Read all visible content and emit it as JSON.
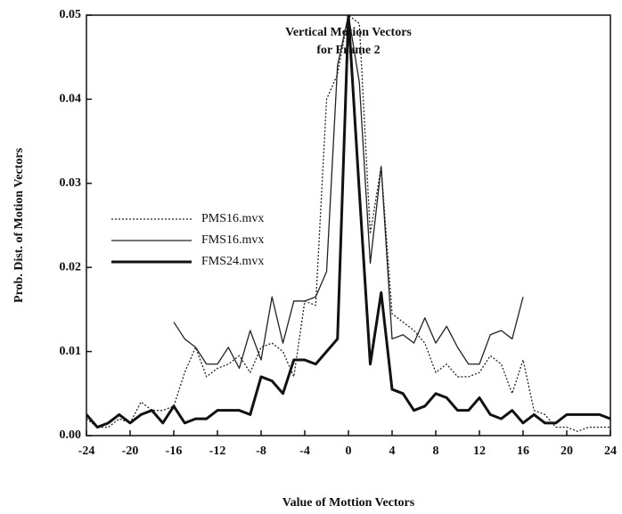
{
  "chart_data": {
    "type": "line",
    "title": [
      "Vertical Motion Vectors",
      "for Frame 2"
    ],
    "x_label": "Value of Mottion Vectors",
    "y_label": "Prob. Dist. of Motion Vectors",
    "xlim": [
      -24,
      24
    ],
    "xticks": [
      -24,
      -20,
      -16,
      -12,
      -8,
      -4,
      0,
      4,
      8,
      12,
      16,
      20,
      24
    ],
    "ylim": [
      0,
      0.05
    ],
    "yticks": [
      {
        "value": 0,
        "label": "0.00"
      },
      0.01,
      0.02,
      0.03,
      0.04,
      0.05
    ],
    "legend": "upper left",
    "series": [
      {
        "name": "PMS16.mvx",
        "color": "#222222",
        "style": "dotted",
        "width": 1.3,
        "x": [
          -24,
          -23,
          -22,
          -21,
          -20,
          -19,
          -18,
          -17,
          -16,
          -15,
          -14,
          -13,
          -12,
          -11,
          -10,
          -9,
          -8,
          -7,
          -6,
          -5,
          -4,
          -3,
          -2,
          -1,
          0,
          1,
          2,
          3,
          4,
          5,
          6,
          7,
          8,
          9,
          10,
          11,
          12,
          13,
          14,
          15,
          16,
          17,
          18,
          19,
          20,
          21,
          22,
          23,
          24
        ],
        "values": [
          0.002,
          0.001,
          0.001,
          0.002,
          0.0015,
          0.004,
          0.003,
          0.003,
          0.0035,
          0.0075,
          0.0105,
          0.007,
          0.008,
          0.0085,
          0.0095,
          0.0075,
          0.0105,
          0.011,
          0.01,
          0.007,
          0.016,
          0.0155,
          0.04,
          0.043,
          0.05,
          0.049,
          0.024,
          0.032,
          0.0145,
          0.0135,
          0.0125,
          0.011,
          0.0075,
          0.0085,
          0.007,
          0.007,
          0.0075,
          0.0095,
          0.0085,
          0.005,
          0.009,
          0.003,
          0.0025,
          0.001,
          0.001,
          0.0005,
          0.001,
          0.001,
          0.001
        ]
      },
      {
        "name": "FMS16.mvx",
        "color": "#222222",
        "style": "solid",
        "width": 1.3,
        "x": [
          -16,
          -15,
          -14,
          -13,
          -12,
          -11,
          -10,
          -9,
          -8,
          -7,
          -6,
          -5,
          -4,
          -3,
          -2,
          -1,
          0,
          1,
          2,
          3,
          4,
          5,
          6,
          7,
          8,
          9,
          10,
          11,
          12,
          13,
          14,
          15,
          16
        ],
        "values": [
          0.0135,
          0.0115,
          0.0105,
          0.0085,
          0.0085,
          0.0105,
          0.008,
          0.0125,
          0.009,
          0.0165,
          0.011,
          0.016,
          0.016,
          0.0165,
          0.0195,
          0.044,
          0.05,
          0.042,
          0.0205,
          0.032,
          0.0115,
          0.012,
          0.011,
          0.014,
          0.011,
          0.013,
          0.0105,
          0.0085,
          0.0085,
          0.012,
          0.0125,
          0.0115,
          0.0165
        ]
      },
      {
        "name": "FMS24.mvx",
        "color": "#111111",
        "style": "solid",
        "width": 3,
        "x": [
          -24,
          -23,
          -22,
          -21,
          -20,
          -19,
          -18,
          -17,
          -16,
          -15,
          -14,
          -13,
          -12,
          -11,
          -10,
          -9,
          -8,
          -7,
          -6,
          -5,
          -4,
          -3,
          -2,
          -1,
          0,
          1,
          2,
          3,
          4,
          5,
          6,
          7,
          8,
          9,
          10,
          11,
          12,
          13,
          14,
          15,
          16,
          17,
          18,
          19,
          20,
          21,
          22,
          23,
          24
        ],
        "values": [
          0.0025,
          0.001,
          0.0015,
          0.0025,
          0.0015,
          0.0025,
          0.003,
          0.0015,
          0.0035,
          0.0015,
          0.002,
          0.002,
          0.003,
          0.003,
          0.003,
          0.0025,
          0.007,
          0.0065,
          0.005,
          0.009,
          0.009,
          0.0085,
          0.01,
          0.0115,
          0.05,
          0.029,
          0.0085,
          0.017,
          0.0055,
          0.005,
          0.003,
          0.0035,
          0.005,
          0.0045,
          0.003,
          0.003,
          0.0045,
          0.0025,
          0.002,
          0.003,
          0.0015,
          0.0025,
          0.0015,
          0.0015,
          0.0025,
          0.0025,
          0.0025,
          0.0025,
          0.002
        ]
      }
    ]
  }
}
